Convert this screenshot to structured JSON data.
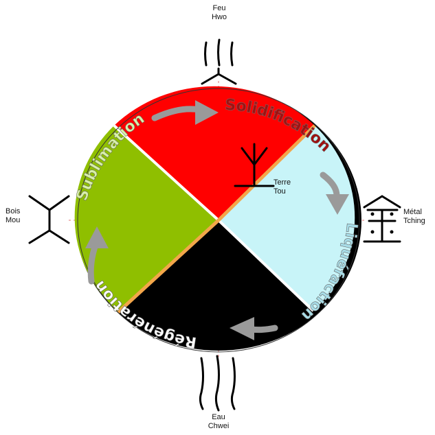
{
  "colors": {
    "fire": "#ff0000",
    "wood": "#8fbf00",
    "metal": "#c8f4f8",
    "water": "#000000",
    "border_accent": "#f3a64a",
    "arrow": "#9a9a9a",
    "sublimation_text": "#d9f2a8",
    "solidification_text": "#a01010",
    "liquefaction_text": "#a8dde8",
    "regeneration_text": "#ffffff"
  },
  "elements": {
    "fire": {
      "name": "Feu",
      "alt": "Hwo",
      "symbol": "fire-trigram-icon"
    },
    "wood": {
      "name": "Bois",
      "alt": "Mou",
      "symbol": "wood-figure-icon"
    },
    "metal": {
      "name": "Métal",
      "alt": "Tching",
      "symbol": "metal-character-icon"
    },
    "water": {
      "name": "Eau",
      "alt": "Chwei",
      "symbol": "water-lines-icon"
    },
    "earth": {
      "name": "Terre",
      "alt": "Tou",
      "symbol": "earth-tree-icon"
    }
  },
  "phases": {
    "sublimation": "Sublimation",
    "solidification": "Solidification",
    "liquefaction": "Liquéfaction",
    "regeneration": "Régénération"
  }
}
